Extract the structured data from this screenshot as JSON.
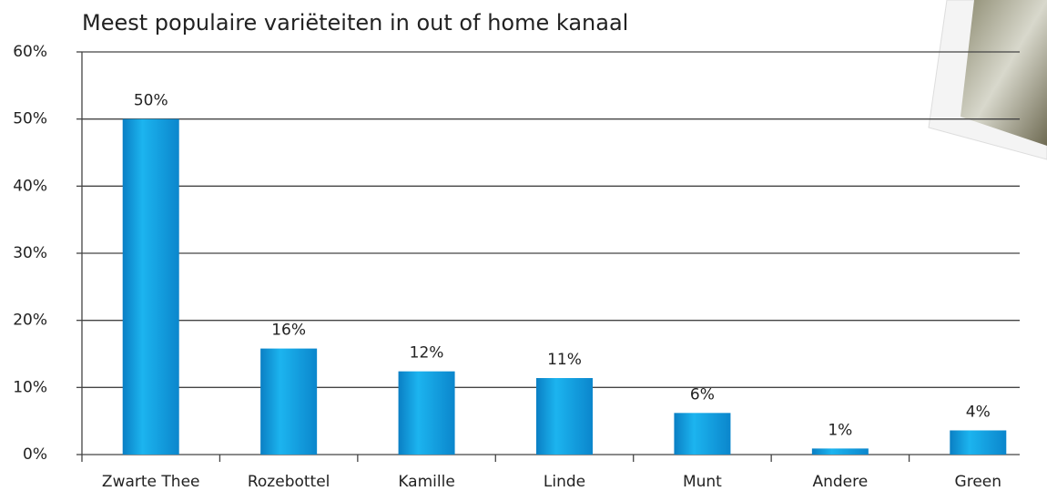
{
  "chart_data": {
    "type": "bar",
    "title": "Meest populaire variëteiten in out of home kanaal",
    "categories": [
      "Zwarte Thee",
      "Rozebottel",
      "Kamille",
      "Linde",
      "Munt",
      "Andere",
      "Green"
    ],
    "values": [
      50,
      15.8,
      12.4,
      11.4,
      6.2,
      0.9,
      3.6
    ],
    "value_labels": [
      "50%",
      "16%",
      "12%",
      "11%",
      "6%",
      "1%",
      "4%"
    ],
    "color": "#1aa3e0",
    "ylim": [
      0,
      60
    ],
    "yticks": [
      {
        "value": 0,
        "label": "0%"
      },
      {
        "value": 10,
        "label": "10%"
      },
      {
        "value": 20,
        "label": "20%"
      },
      {
        "value": 30,
        "label": "30%"
      },
      {
        "value": 40,
        "label": "40%"
      },
      {
        "value": 50,
        "label": "50%"
      },
      {
        "value": 60,
        "label": "60%"
      }
    ],
    "grid": true
  }
}
